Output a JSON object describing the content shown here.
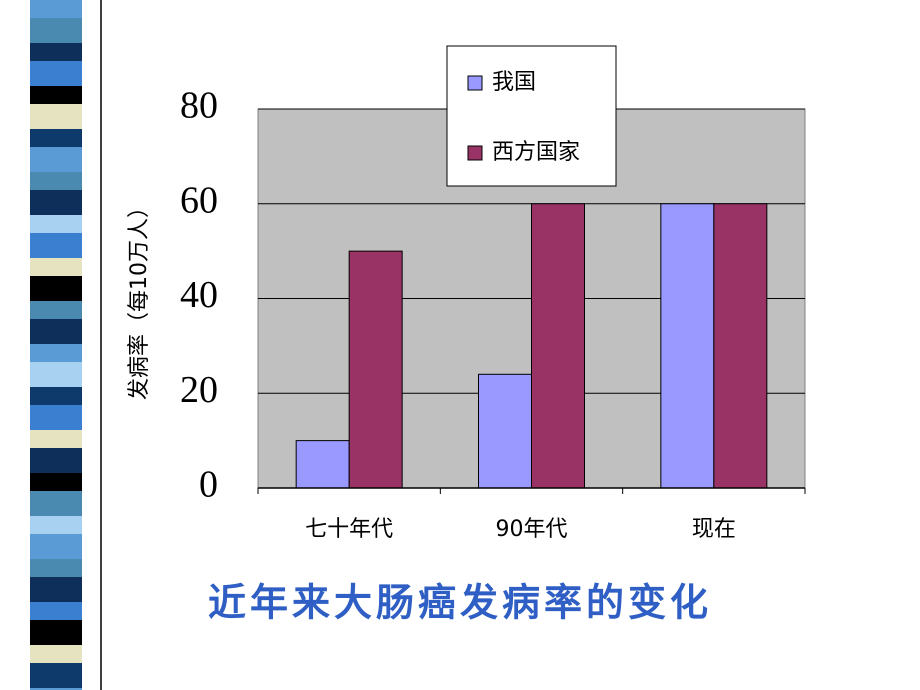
{
  "chart_data": {
    "type": "bar",
    "title": "近年来大肠癌发病率的变化",
    "y_label": "发病率（每10万人）",
    "categories": [
      "七十年代",
      "90年代",
      "现在"
    ],
    "series": [
      {
        "name": "我国",
        "color": "#9999ff",
        "values": [
          10,
          24,
          60
        ]
      },
      {
        "name": "西方国家",
        "color": "#993366",
        "values": [
          50,
          60,
          60
        ]
      }
    ],
    "ylim": [
      0,
      80
    ],
    "yticks": [
      0,
      20,
      40,
      60,
      80
    ],
    "grid": true,
    "legend": "top"
  }
}
